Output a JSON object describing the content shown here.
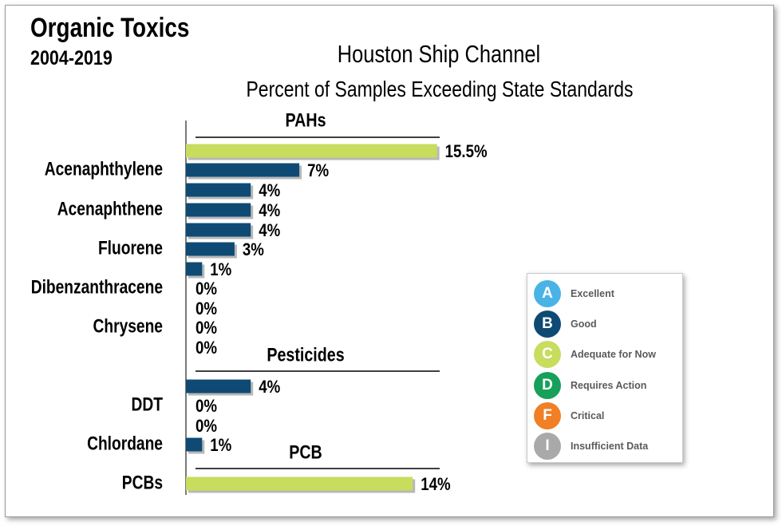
{
  "header": {
    "title": "Organic Toxics",
    "years": "2004-2019"
  },
  "chart_data": {
    "type": "bar",
    "orientation": "horizontal",
    "title": "Houston Ship Channel",
    "subtitle": "Percent of Samples Exceeding State Standards",
    "unit": "%",
    "groups": [
      {
        "name": "PAHs",
        "bars": [
          {
            "label": "",
            "value": 15.5,
            "value_label": "15.5%",
            "grade": "C"
          },
          {
            "label": "Acenaphthylene",
            "value": 7,
            "value_label": "7%",
            "grade": "B"
          },
          {
            "label": "",
            "value": 4,
            "value_label": "4%",
            "grade": "B"
          },
          {
            "label": "Acenaphthene",
            "value": 4,
            "value_label": "4%",
            "grade": "B"
          },
          {
            "label": "",
            "value": 4,
            "value_label": "4%",
            "grade": "B"
          },
          {
            "label": "Fluorene",
            "value": 3,
            "value_label": "3%",
            "grade": "B"
          },
          {
            "label": "",
            "value": 1,
            "value_label": "1%",
            "grade": "B"
          },
          {
            "label": "Dibenzanthracene",
            "value": 0,
            "value_label": "0%",
            "grade": "B"
          },
          {
            "label": "",
            "value": 0,
            "value_label": "0%",
            "grade": "B"
          },
          {
            "label": "Chrysene",
            "value": 0,
            "value_label": "0%",
            "grade": "B"
          },
          {
            "label": "",
            "value": 0,
            "value_label": "0%",
            "grade": "B"
          }
        ]
      },
      {
        "name": "Pesticides",
        "bars": [
          {
            "label": "",
            "value": 4,
            "value_label": "4%",
            "grade": "B"
          },
          {
            "label": "DDT",
            "value": 0,
            "value_label": "0%",
            "grade": "B"
          },
          {
            "label": "",
            "value": 0,
            "value_label": "0%",
            "grade": "B"
          },
          {
            "label": "Chlordane",
            "value": 1,
            "value_label": "1%",
            "grade": "B"
          }
        ]
      },
      {
        "name": "PCB",
        "bars": [
          {
            "label": "PCBs",
            "value": 14,
            "value_label": "14%",
            "grade": "C"
          }
        ]
      }
    ],
    "grade_colors": {
      "A": "#4ab3e6",
      "B": "#0f4a74",
      "C": "#c8dc5e",
      "D": "#17a05a",
      "F": "#f07f25",
      "I": "#a9a9a9"
    },
    "legend": {
      "placement": "right",
      "items": [
        {
          "grade": "A",
          "label": "Excellent"
        },
        {
          "grade": "B",
          "label": "Good"
        },
        {
          "grade": "C",
          "label": "Adequate for Now"
        },
        {
          "grade": "D",
          "label": "Requires Action"
        },
        {
          "grade": "F",
          "label": "Critical"
        },
        {
          "grade": "I",
          "label": "Insufficient Data"
        }
      ]
    }
  }
}
